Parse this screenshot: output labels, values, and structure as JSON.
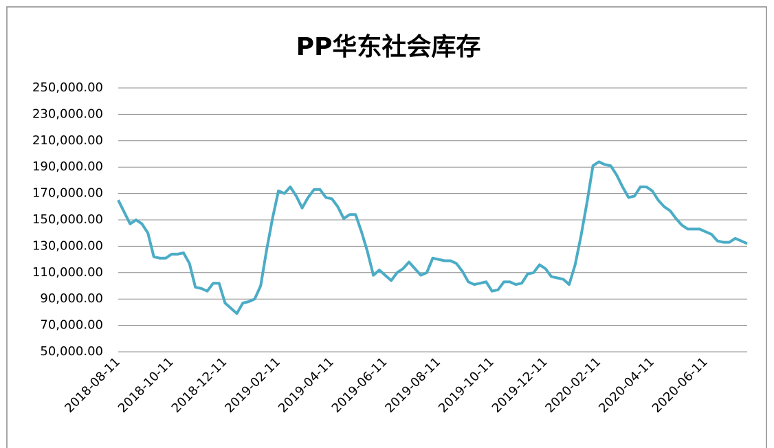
{
  "chart_data": {
    "type": "line",
    "title": "PP华东社会库存",
    "categories": [
      "2018-08-11",
      null,
      null,
      null,
      null,
      null,
      null,
      null,
      null,
      "2018-10-11",
      null,
      null,
      null,
      null,
      null,
      null,
      null,
      null,
      "2018-12-11",
      null,
      null,
      null,
      null,
      null,
      null,
      null,
      null,
      "2019-02-11",
      null,
      null,
      null,
      null,
      null,
      null,
      null,
      null,
      "2019-04-11",
      null,
      null,
      null,
      null,
      null,
      null,
      null,
      null,
      "2019-06-11",
      null,
      null,
      null,
      null,
      null,
      null,
      null,
      null,
      "2019-08-11",
      null,
      null,
      null,
      null,
      null,
      null,
      null,
      null,
      "2019-10-11",
      null,
      null,
      null,
      null,
      null,
      null,
      null,
      null,
      "2019-12-11",
      null,
      null,
      null,
      null,
      null,
      null,
      null,
      null,
      "2020-02-11",
      null,
      null,
      null,
      null,
      null,
      null,
      null,
      null,
      "2020-04-11",
      null,
      null,
      null,
      null,
      null,
      null,
      null,
      null,
      "2020-06-11",
      null,
      null,
      null,
      null,
      null,
      null,
      null
    ],
    "series": [
      {
        "color": "#4bacc6",
        "values": [
          165000,
          156000,
          147000,
          150000,
          147000,
          140000,
          122000,
          121000,
          121000,
          124000,
          124000,
          125000,
          117000,
          99000,
          98000,
          96000,
          102000,
          102000,
          87000,
          83000,
          79000,
          87000,
          88000,
          90000,
          100000,
          127000,
          151000,
          172000,
          170000,
          175000,
          168000,
          159000,
          167000,
          173000,
          173000,
          167000,
          166000,
          160000,
          151000,
          154000,
          154000,
          141000,
          126000,
          108000,
          112000,
          108000,
          104000,
          110000,
          113000,
          118000,
          113000,
          108000,
          110000,
          121000,
          120000,
          119000,
          119000,
          117000,
          111000,
          103000,
          101000,
          102000,
          103000,
          96000,
          97000,
          103000,
          103000,
          101000,
          102000,
          109000,
          110000,
          116000,
          113000,
          107000,
          106000,
          105000,
          101000,
          116000,
          138000,
          163000,
          191000,
          194000,
          192000,
          191000,
          184000,
          175000,
          167000,
          168000,
          175000,
          175000,
          172000,
          165000,
          160000,
          157000,
          151000,
          146000,
          143000,
          143000,
          143000,
          141000,
          139000,
          134000,
          133000,
          133000,
          136000,
          134000,
          132000
        ]
      }
    ],
    "ylim": [
      50000,
      250000
    ],
    "yticks": [
      {
        "value": 50000,
        "label": "50,000.00"
      },
      {
        "value": 70000,
        "label": "70,000.00"
      },
      {
        "value": 90000,
        "label": "90,000.00"
      },
      {
        "value": 110000,
        "label": "110,000.00"
      },
      {
        "value": 130000,
        "label": "130,000.00"
      },
      {
        "value": 150000,
        "label": "150,000.00"
      },
      {
        "value": 170000,
        "label": "170,000.00"
      },
      {
        "value": 190000,
        "label": "190,000.00"
      },
      {
        "value": 210000,
        "label": "210,000.00"
      },
      {
        "value": 230000,
        "label": "230,000.00"
      },
      {
        "value": 250000,
        "label": "250,000.00"
      }
    ],
    "grid": true
  }
}
